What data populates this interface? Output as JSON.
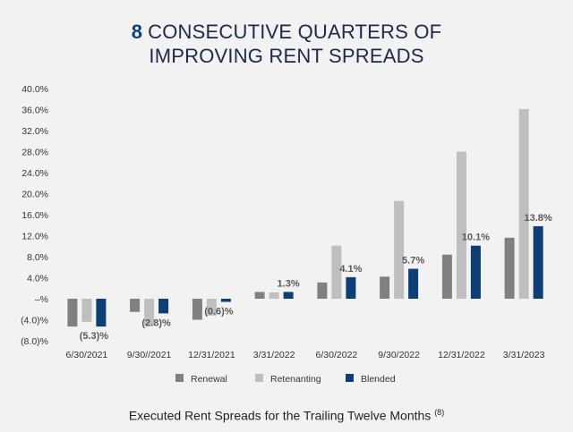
{
  "title": {
    "number": "8",
    "line1_rest": "CONSECUTIVE QUARTERS OF",
    "line2": "IMPROVING RENT SPREADS"
  },
  "footer": {
    "text": "Executed Rent Spreads for the Trailing Twelve Months",
    "footnote": "(8)"
  },
  "chart_data": {
    "type": "bar",
    "categories": [
      "6/30/2021",
      "9/30//2021",
      "12/31/2021",
      "3/31/2022",
      "6/30/2022",
      "9/30/2022",
      "12/31/2022",
      "3/31/2023"
    ],
    "series": [
      {
        "name": "Renewal",
        "color": "#808080",
        "values": [
          -5.3,
          -2.5,
          -4.0,
          1.3,
          3.1,
          4.2,
          8.4,
          11.6
        ]
      },
      {
        "name": "Retenanting",
        "color": "#bfbfbf",
        "values": [
          -4.4,
          -5.1,
          -3.2,
          1.2,
          10.1,
          18.6,
          28.0,
          36.1
        ]
      },
      {
        "name": "Blended",
        "color": "#0e3f74",
        "values": [
          -5.3,
          -2.8,
          -0.6,
          1.3,
          4.1,
          5.7,
          10.1,
          13.8
        ]
      }
    ],
    "data_labels": [
      "(5.3)%",
      "(2.8)%",
      "(0.6)%",
      "1.3%",
      "4.1%",
      "5.7%",
      "10.1%",
      "13.8%"
    ],
    "y_ticks": [
      "40.0%",
      "36.0%",
      "32.0%",
      "28.0%",
      "24.0%",
      "20.0%",
      "16.0%",
      "12.0%",
      "8.0%",
      "4.0%",
      "–%",
      "(4.0)%",
      "(8.0)%"
    ],
    "y_tick_values": [
      40,
      36,
      32,
      28,
      24,
      20,
      16,
      12,
      8,
      4,
      0,
      -4,
      -8
    ],
    "ylim": [
      -8,
      40
    ],
    "legend_position": "bottom-center",
    "grid": false
  }
}
